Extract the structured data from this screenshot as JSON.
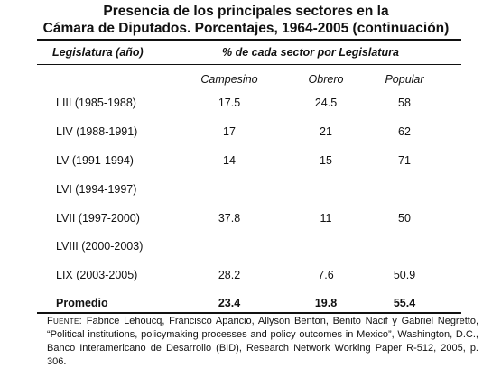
{
  "title": {
    "line1": "Presencia de los principales sectores en la",
    "line2": "Cámara de Diputados. Porcentajes, 1964-2005 (continuación)"
  },
  "table": {
    "header_left": "Legislatura (año)",
    "header_right": "% de cada sector por Legislatura",
    "columns": [
      "Campesino",
      "Obrero",
      "Popular"
    ],
    "rows": [
      {
        "label": "LIII (1985-1988)",
        "campesino": "17.5",
        "obrero": "24.5",
        "popular": "58"
      },
      {
        "label": "LIV (1988-1991)",
        "campesino": "17",
        "obrero": "21",
        "popular": "62"
      },
      {
        "label": "LV (1991-1994)",
        "campesino": "14",
        "obrero": "15",
        "popular": "71"
      },
      {
        "label": "LVI (1994-1997)",
        "campesino": "",
        "obrero": "",
        "popular": ""
      },
      {
        "label": "LVII (1997-2000)",
        "campesino": "37.8",
        "obrero": "11",
        "popular": "50"
      },
      {
        "label": "LVIII (2000-2003)",
        "campesino": "",
        "obrero": "",
        "popular": ""
      },
      {
        "label": "LIX (2003-2005)",
        "campesino": "28.2",
        "obrero": "7.6",
        "popular": "50.9"
      }
    ],
    "average": {
      "label": "Promedio",
      "campesino": "23.4",
      "obrero": "19.8",
      "popular": "55.4"
    }
  },
  "source": {
    "label": "Fuente:",
    "text": "Fabrice Lehoucq, Francisco Aparicio, Allyson Benton, Benito Nacif y Gabriel Negretto, “Political institutions, policymaking processes and policy outcomes in Mexico”, Washington, D.C., Banco Interamericano de Desarrollo (BID), Research Network Working Paper R-512, 2005, p. 306."
  }
}
